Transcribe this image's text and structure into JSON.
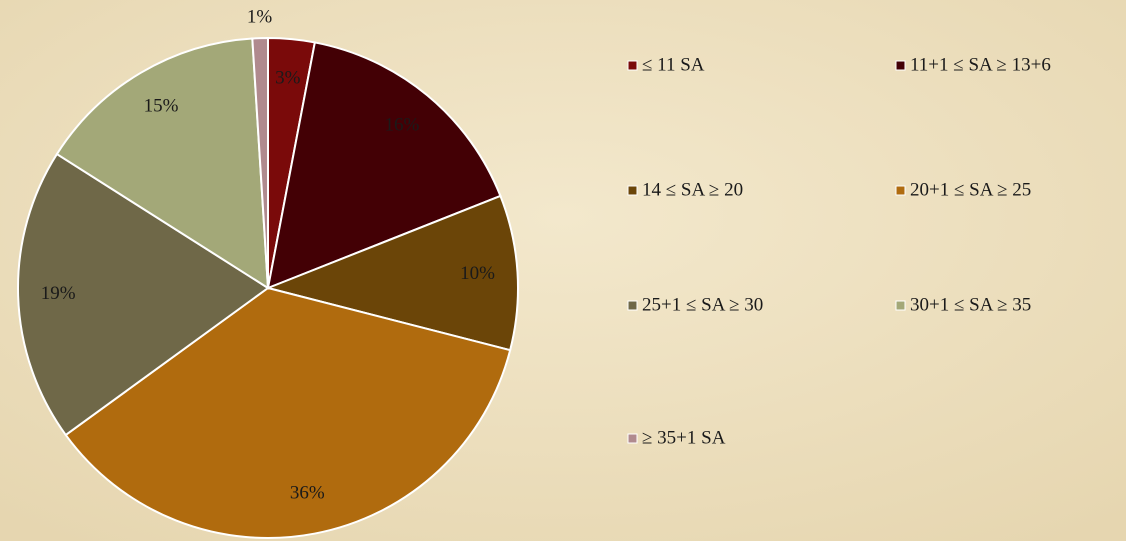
{
  "chart_data": {
    "type": "pie",
    "categories": [
      "≤ 11 SA",
      "11+1 ≤ SA ≥ 13+6",
      "14 ≤ SA ≥ 20",
      "20+1 ≤ SA ≥ 25",
      "25+1 ≤ SA ≥ 30",
      "30+1 ≤ SA ≥ 35",
      "≥ 35+1 SA"
    ],
    "values": [
      3,
      16,
      10,
      36,
      19,
      15,
      1
    ],
    "value_labels": [
      "3%",
      "16%",
      "10%",
      "36%",
      "19%",
      "15%",
      "1%"
    ],
    "colors": [
      "#7a0a0a",
      "#430005",
      "#6b4508",
      "#b06b0e",
      "#6f6848",
      "#a3a878",
      "#b08a8e"
    ],
    "legend": "right"
  }
}
